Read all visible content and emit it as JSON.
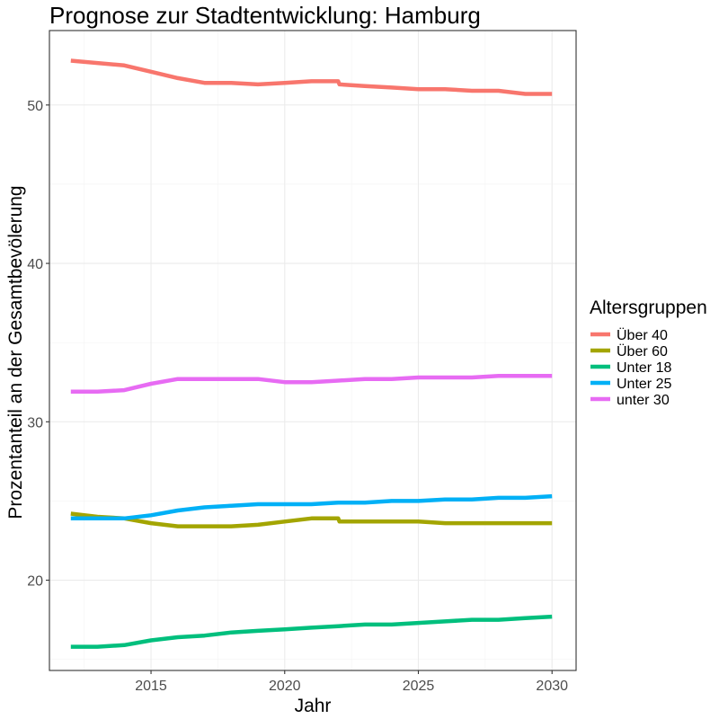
{
  "chart_data": {
    "type": "line",
    "title": "Prognose zur Stadtentwicklung: Hamburg",
    "xlabel": "Jahr",
    "ylabel": "Prozentanteil an der Gesamtbevölerung",
    "xlim": [
      2011.2,
      2030.9
    ],
    "ylim": [
      14.3,
      54.7
    ],
    "x_ticks": [
      2015,
      2020,
      2025,
      2030
    ],
    "y_ticks": [
      20,
      30,
      40,
      50
    ],
    "grid": true,
    "legend": {
      "title": "Altersgruppen",
      "position": "right"
    },
    "series": [
      {
        "name": "Über 40",
        "color": "#F8766D",
        "points": [
          [
            2012,
            52.8
          ],
          [
            2014,
            52.5
          ],
          [
            2015,
            52.1
          ],
          [
            2016,
            51.7
          ],
          [
            2017,
            51.4
          ],
          [
            2018,
            51.4
          ],
          [
            2019,
            51.3
          ],
          [
            2020,
            51.4
          ],
          [
            2021,
            51.5
          ],
          [
            2022,
            51.5
          ],
          [
            2022.05,
            51.3
          ],
          [
            2023,
            51.2
          ],
          [
            2024,
            51.1
          ],
          [
            2025,
            51.0
          ],
          [
            2026,
            51.0
          ],
          [
            2027,
            50.9
          ],
          [
            2028,
            50.9
          ],
          [
            2029,
            50.7
          ],
          [
            2030,
            50.7
          ]
        ]
      },
      {
        "name": "Über 60",
        "color": "#A3A500",
        "points": [
          [
            2012,
            24.2
          ],
          [
            2013,
            24.0
          ],
          [
            2014,
            23.9
          ],
          [
            2015,
            23.6
          ],
          [
            2016,
            23.4
          ],
          [
            2017,
            23.4
          ],
          [
            2018,
            23.4
          ],
          [
            2019,
            23.5
          ],
          [
            2020,
            23.7
          ],
          [
            2021,
            23.9
          ],
          [
            2022,
            23.9
          ],
          [
            2022.05,
            23.7
          ],
          [
            2023,
            23.7
          ],
          [
            2024,
            23.7
          ],
          [
            2025,
            23.7
          ],
          [
            2026,
            23.6
          ],
          [
            2027,
            23.6
          ],
          [
            2028,
            23.6
          ],
          [
            2029,
            23.6
          ],
          [
            2030,
            23.6
          ]
        ]
      },
      {
        "name": "Unter 18",
        "color": "#00BF7D",
        "points": [
          [
            2012,
            15.8
          ],
          [
            2013,
            15.8
          ],
          [
            2014,
            15.9
          ],
          [
            2015,
            16.2
          ],
          [
            2016,
            16.4
          ],
          [
            2017,
            16.5
          ],
          [
            2018,
            16.7
          ],
          [
            2019,
            16.8
          ],
          [
            2020,
            16.9
          ],
          [
            2021,
            17.0
          ],
          [
            2022,
            17.1
          ],
          [
            2023,
            17.2
          ],
          [
            2024,
            17.2
          ],
          [
            2025,
            17.3
          ],
          [
            2026,
            17.4
          ],
          [
            2027,
            17.5
          ],
          [
            2028,
            17.5
          ],
          [
            2029,
            17.6
          ],
          [
            2030,
            17.7
          ]
        ]
      },
      {
        "name": "Unter 25",
        "color": "#00B0F6",
        "points": [
          [
            2012,
            23.9
          ],
          [
            2013,
            23.9
          ],
          [
            2014,
            23.9
          ],
          [
            2015,
            24.1
          ],
          [
            2016,
            24.4
          ],
          [
            2017,
            24.6
          ],
          [
            2018,
            24.7
          ],
          [
            2019,
            24.8
          ],
          [
            2020,
            24.8
          ],
          [
            2021,
            24.8
          ],
          [
            2022,
            24.9
          ],
          [
            2023,
            24.9
          ],
          [
            2024,
            25.0
          ],
          [
            2025,
            25.0
          ],
          [
            2026,
            25.1
          ],
          [
            2027,
            25.1
          ],
          [
            2028,
            25.2
          ],
          [
            2029,
            25.2
          ],
          [
            2030,
            25.3
          ]
        ]
      },
      {
        "name": "unter 30",
        "color": "#E76BF3",
        "points": [
          [
            2012,
            31.9
          ],
          [
            2013,
            31.9
          ],
          [
            2014,
            32.0
          ],
          [
            2015,
            32.4
          ],
          [
            2016,
            32.7
          ],
          [
            2017,
            32.7
          ],
          [
            2018,
            32.7
          ],
          [
            2019,
            32.7
          ],
          [
            2020,
            32.5
          ],
          [
            2021,
            32.5
          ],
          [
            2022,
            32.6
          ],
          [
            2023,
            32.7
          ],
          [
            2024,
            32.7
          ],
          [
            2025,
            32.8
          ],
          [
            2026,
            32.8
          ],
          [
            2027,
            32.8
          ],
          [
            2028,
            32.9
          ],
          [
            2029,
            32.9
          ],
          [
            2030,
            32.9
          ]
        ]
      }
    ]
  }
}
